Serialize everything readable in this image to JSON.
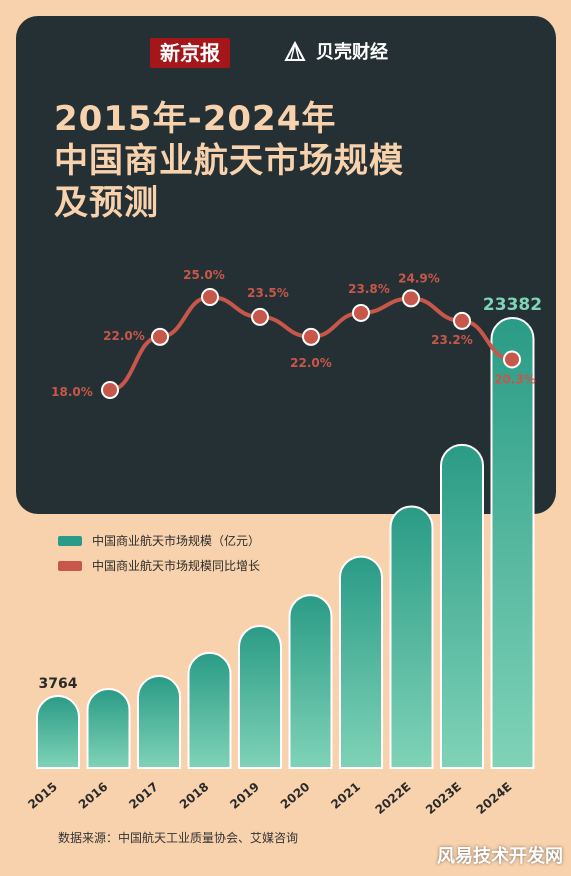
{
  "brand": {
    "newspaper": "新京报",
    "partner": "贝壳财经"
  },
  "title_lines": [
    "2015年-2024年",
    "中国商业航天市场规模",
    "及预测"
  ],
  "legend": {
    "bar_label": "中国商业航天市场规模（亿元）",
    "line_label": "中国商业航天市场规模同比增长"
  },
  "source": "数据来源：中国航天工业质量协会、艾媒咨询",
  "watermark": "风易技术开发网",
  "colors": {
    "bar_top": "#2a9b86",
    "bar_bottom": "#7fd3b7",
    "line": "#c7574a",
    "background": "#f8d2ad",
    "card": "#243034",
    "title": "#f8d2ad"
  },
  "chart_data": {
    "type": "bar",
    "categories": [
      "2015",
      "2016",
      "2017",
      "2018",
      "2019",
      "2020",
      "2021",
      "2022E",
      "2023E",
      "2024E"
    ],
    "series": [
      {
        "name": "中国商业航天市场规模（亿元）",
        "values": [
          3764,
          4130,
          4800,
          6000,
          7400,
          9000,
          11000,
          13600,
          16800,
          23382
        ]
      },
      {
        "name": "中国商业航天市场规模同比增长",
        "values": [
          null,
          18.0,
          22.0,
          25.0,
          23.5,
          22.0,
          23.8,
          24.9,
          23.2,
          20.3
        ]
      }
    ],
    "bar_labels": {
      "2015": "3764",
      "2024E": "23382"
    },
    "line_labels": [
      "18.0%",
      "22.0%",
      "25.0%",
      "23.5%",
      "22.0%",
      "23.8%",
      "24.9%",
      "23.2%",
      "20.3%"
    ]
  }
}
